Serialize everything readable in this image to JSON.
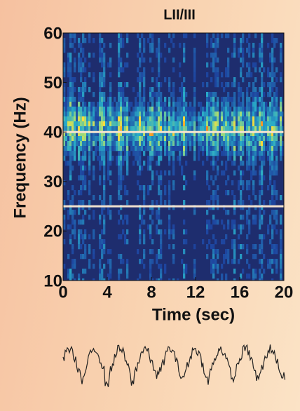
{
  "chart_data": {
    "type": "spectrogram",
    "title": "LII/III",
    "x_label": "Time (sec)",
    "y_label": "Frequency (Hz)",
    "xlim": [
      0,
      20
    ],
    "xticks": [
      0,
      4,
      8,
      12,
      16,
      20
    ],
    "ylim": [
      10,
      60
    ],
    "yticks": [
      10,
      20,
      30,
      40,
      50,
      60
    ],
    "hlines": [
      40,
      25
    ],
    "hline_color": "#f3e3cf"
  }
}
